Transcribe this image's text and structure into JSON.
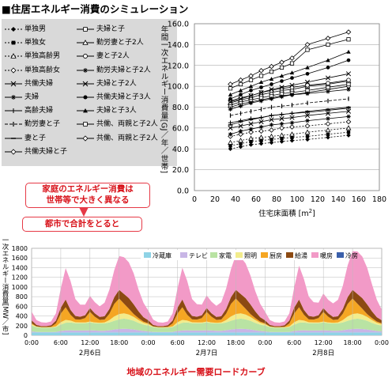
{
  "title": "住居エネルギー消費のシミュレーション",
  "callouts": {
    "household": [
      "家庭のエネルギー消費は",
      "世帯等で大きく異なる"
    ],
    "city": "都市で合計をとると"
  },
  "bottom_title": "地域のエネルギー需要ロードカーブ",
  "chart_data": [
    {
      "type": "line",
      "xlabel": "住宅床面積 [m",
      "xlabel_sup": "2",
      "xlabel_end": "]",
      "ylabel": "年間一次エネルギー消費量[GJ／年／世帯]",
      "xlim": [
        0,
        180
      ],
      "ylim": [
        0,
        160
      ],
      "xticks": [
        0,
        20,
        40,
        60,
        80,
        100,
        120,
        140,
        160,
        180
      ],
      "yticks": [
        "0.0",
        "20.0",
        "40.0",
        "60.0",
        "80.0",
        "100.0",
        "120.0",
        "140.0",
        "160.0"
      ],
      "grid": true,
      "x": [
        35,
        45,
        55,
        65,
        75,
        85,
        95,
        110,
        130,
        150
      ],
      "series": [
        {
          "name": "単独男",
          "marker": "diamond-filled",
          "dash": "2,2",
          "values": [
            40,
            42,
            44,
            45,
            46,
            47,
            48,
            49,
            51,
            53
          ]
        },
        {
          "name": "単独女",
          "marker": "square-filled",
          "dash": "2,2",
          "values": [
            43,
            45,
            47,
            48,
            49,
            50,
            51,
            52,
            54,
            56
          ]
        },
        {
          "name": "単独高齢男",
          "marker": "triangle-open",
          "dash": "2,2",
          "values": [
            46,
            48,
            50,
            51,
            52,
            53,
            54,
            56,
            58,
            60
          ]
        },
        {
          "name": "単独高齢女",
          "marker": "diamond-open",
          "dash": "2,2",
          "values": [
            52,
            54,
            56,
            57,
            58,
            60,
            61,
            62,
            64,
            66
          ]
        },
        {
          "name": "共働夫婦",
          "marker": "x",
          "dash": "",
          "values": [
            60,
            62,
            64,
            66,
            68,
            69,
            70,
            72,
            74,
            76
          ]
        },
        {
          "name": "夫婦",
          "marker": "star",
          "dash": "",
          "values": [
            54,
            57,
            59,
            61,
            63,
            64,
            65,
            67,
            69,
            71
          ]
        },
        {
          "name": "高齢夫婦",
          "marker": "plus",
          "dash": "",
          "values": [
            65,
            67,
            69,
            70,
            72,
            73,
            74,
            75,
            77,
            79
          ]
        },
        {
          "name": "勤労妻と子",
          "marker": "bar",
          "dash": "4,2",
          "values": [
            72,
            74,
            76,
            78,
            80,
            81,
            82,
            84,
            86,
            88
          ]
        },
        {
          "name": "妻と子",
          "marker": "dash",
          "dash": "",
          "values": [
            63,
            66,
            68,
            70,
            72,
            73,
            74,
            76,
            78,
            80
          ]
        },
        {
          "name": "共働夫婦と子",
          "marker": "diamond-open",
          "dash": "",
          "values": [
            80,
            83,
            85,
            87,
            89,
            91,
            92,
            94,
            97,
            100
          ]
        },
        {
          "name": "夫婦と子",
          "marker": "square-open",
          "dash": "",
          "values": [
            82,
            85,
            87,
            89,
            91,
            93,
            94,
            96,
            99,
            102
          ]
        },
        {
          "name": "勤労妻と子2人",
          "marker": "triangle-open",
          "dash": "",
          "values": [
            84,
            87,
            89,
            92,
            94,
            96,
            97,
            100,
            102,
            105
          ]
        },
        {
          "name": "妻と子2人",
          "marker": "circle-open",
          "dash": "",
          "values": [
            86,
            89,
            91,
            94,
            96,
            98,
            99,
            101,
            103,
            106
          ]
        },
        {
          "name": "勤労夫婦と子2人",
          "marker": "star",
          "dash": "",
          "values": [
            78,
            81,
            84,
            86,
            88,
            90,
            92,
            93,
            95,
            97
          ]
        },
        {
          "name": "夫婦と子2人",
          "marker": "x",
          "dash": "",
          "values": [
            85,
            88,
            91,
            94,
            97,
            99,
            101,
            104,
            108,
            112
          ]
        },
        {
          "name": "共働夫婦と子3人",
          "marker": "circle-filled",
          "dash": "",
          "values": [
            88,
            92,
            96,
            99,
            102,
            105,
            108,
            112,
            118,
            125
          ]
        },
        {
          "name": "夫婦と子3人",
          "marker": "triangle-filled",
          "dash": "",
          "values": [
            92,
            96,
            100,
            104,
            107,
            110,
            113,
            118,
            125,
            133
          ]
        },
        {
          "name": "共働、両親と子2人",
          "marker": "square-open",
          "dash": "",
          "values": [
            98,
            102,
            106,
            110,
            114,
            118,
            122,
            135,
            140,
            145
          ]
        },
        {
          "name": "共働、両親と子2人",
          "marker": "diamond-open",
          "dash": "",
          "values": [
            102,
            106,
            110,
            115,
            119,
            123,
            127,
            140,
            146,
            152
          ]
        }
      ]
    },
    {
      "type": "area",
      "stacked": true,
      "ylabel": "一次エネルギー消費量[MW／市]",
      "ylim": [
        0,
        1800
      ],
      "yticks": [
        0,
        200,
        400,
        600,
        800,
        1000,
        1200,
        1400,
        1600,
        1800
      ],
      "xlabels": [
        "0:00",
        "6:00",
        "12:00",
        "18:00",
        "0:00",
        "6:00",
        "12:00",
        "18:00",
        "0:00",
        "6:00",
        "12:00",
        "18:00",
        "0:00"
      ],
      "days": [
        "2月6日",
        "2月7日",
        "2月8日"
      ],
      "grid": true,
      "legend_position": "top",
      "hours_per_point": 1,
      "series": [
        {
          "name": "冷蔵庫",
          "color": "#8fd3e6",
          "values": [
            60,
            60,
            60,
            60,
            60,
            60,
            60,
            60,
            60,
            60,
            60,
            60,
            60,
            60,
            60,
            60,
            60,
            60,
            60,
            60,
            60,
            60,
            60,
            60,
            60,
            60,
            60,
            60,
            60,
            60,
            60,
            60,
            60,
            60,
            60,
            60,
            60,
            60,
            60,
            60,
            60,
            60,
            60,
            60,
            60,
            60,
            60,
            60,
            60,
            60,
            60,
            60,
            60,
            60,
            60,
            60,
            60,
            60,
            60,
            60,
            60,
            60,
            60,
            60,
            60,
            60,
            60,
            60,
            60,
            60,
            60,
            60,
            60
          ]
        },
        {
          "name": "テレビ",
          "color": "#c8b6e6",
          "values": [
            20,
            10,
            8,
            8,
            8,
            10,
            30,
            40,
            45,
            40,
            40,
            40,
            45,
            40,
            35,
            35,
            45,
            60,
            70,
            75,
            70,
            60,
            45,
            30,
            20,
            10,
            8,
            8,
            8,
            10,
            30,
            40,
            45,
            40,
            40,
            40,
            45,
            40,
            35,
            35,
            45,
            60,
            70,
            75,
            70,
            60,
            45,
            30,
            20,
            10,
            8,
            8,
            8,
            10,
            30,
            40,
            45,
            40,
            40,
            40,
            45,
            40,
            35,
            35,
            45,
            60,
            70,
            75,
            70,
            60,
            45,
            30,
            20
          ]
        },
        {
          "name": "家電",
          "color": "#b9e3a3",
          "values": [
            120,
            100,
            90,
            90,
            90,
            100,
            130,
            160,
            160,
            150,
            150,
            150,
            160,
            150,
            150,
            150,
            160,
            180,
            200,
            210,
            200,
            180,
            150,
            130,
            120,
            100,
            90,
            90,
            90,
            100,
            130,
            160,
            160,
            150,
            150,
            150,
            160,
            150,
            150,
            150,
            160,
            180,
            200,
            210,
            200,
            180,
            150,
            130,
            120,
            100,
            90,
            90,
            90,
            100,
            130,
            160,
            160,
            150,
            150,
            150,
            160,
            150,
            150,
            150,
            160,
            180,
            200,
            210,
            200,
            180,
            150,
            130,
            120
          ]
        },
        {
          "name": "照明",
          "color": "#f2ec8c",
          "values": [
            30,
            10,
            8,
            8,
            8,
            15,
            50,
            60,
            40,
            20,
            15,
            15,
            20,
            15,
            15,
            20,
            50,
            90,
            110,
            110,
            100,
            80,
            60,
            40,
            30,
            10,
            8,
            8,
            8,
            15,
            50,
            60,
            40,
            20,
            15,
            15,
            20,
            15,
            15,
            20,
            50,
            90,
            110,
            110,
            100,
            80,
            60,
            40,
            30,
            10,
            8,
            8,
            8,
            15,
            50,
            60,
            40,
            20,
            15,
            15,
            20,
            15,
            15,
            20,
            50,
            90,
            110,
            110,
            100,
            80,
            60,
            40,
            30
          ]
        },
        {
          "name": "厨房",
          "color": "#f5a623",
          "values": [
            20,
            5,
            5,
            5,
            10,
            60,
            180,
            260,
            120,
            60,
            60,
            90,
            200,
            120,
            60,
            60,
            130,
            260,
            320,
            200,
            120,
            60,
            40,
            25,
            20,
            5,
            5,
            5,
            10,
            60,
            180,
            260,
            120,
            60,
            60,
            90,
            200,
            120,
            60,
            60,
            130,
            260,
            320,
            200,
            120,
            60,
            40,
            25,
            20,
            5,
            5,
            5,
            10,
            60,
            180,
            260,
            120,
            60,
            60,
            90,
            200,
            120,
            60,
            60,
            130,
            260,
            320,
            200,
            120,
            60,
            40,
            25,
            20
          ]
        },
        {
          "name": "給湯",
          "color": "#8c4a12",
          "values": [
            60,
            30,
            20,
            20,
            30,
            60,
            120,
            160,
            100,
            70,
            60,
            60,
            80,
            70,
            60,
            70,
            100,
            140,
            180,
            200,
            220,
            200,
            140,
            90,
            60,
            30,
            20,
            20,
            30,
            60,
            120,
            160,
            100,
            70,
            60,
            60,
            80,
            70,
            60,
            70,
            100,
            140,
            180,
            200,
            220,
            200,
            140,
            90,
            60,
            30,
            20,
            20,
            30,
            60,
            120,
            160,
            100,
            70,
            60,
            60,
            80,
            70,
            60,
            70,
            100,
            140,
            180,
            200,
            220,
            200,
            140,
            90,
            60
          ]
        },
        {
          "name": "暖房",
          "color": "#f29ac7",
          "values": [
            180,
            100,
            80,
            70,
            80,
            150,
            400,
            650,
            600,
            350,
            250,
            220,
            250,
            230,
            220,
            280,
            400,
            560,
            700,
            760,
            740,
            640,
            450,
            300,
            200,
            110,
            80,
            70,
            80,
            150,
            400,
            660,
            600,
            350,
            260,
            220,
            260,
            240,
            230,
            290,
            420,
            580,
            720,
            760,
            720,
            600,
            420,
            280,
            180,
            100,
            80,
            70,
            80,
            150,
            420,
            700,
            640,
            400,
            300,
            260,
            300,
            280,
            280,
            340,
            480,
            660,
            800,
            880,
            860,
            760,
            560,
            360,
            220
          ]
        },
        {
          "name": "冷房",
          "color": "#3a5faa",
          "values": [
            0,
            0,
            0,
            0,
            0,
            0,
            0,
            0,
            0,
            0,
            0,
            0,
            0,
            0,
            0,
            0,
            0,
            0,
            0,
            0,
            0,
            0,
            0,
            0,
            0,
            0,
            0,
            0,
            0,
            0,
            0,
            0,
            0,
            0,
            0,
            0,
            0,
            0,
            0,
            0,
            0,
            0,
            0,
            0,
            0,
            0,
            0,
            0,
            0,
            0,
            0,
            0,
            0,
            0,
            0,
            0,
            0,
            0,
            0,
            0,
            0,
            0,
            0,
            0,
            0,
            0,
            0,
            0,
            0,
            0,
            0,
            0,
            0
          ]
        }
      ]
    }
  ]
}
